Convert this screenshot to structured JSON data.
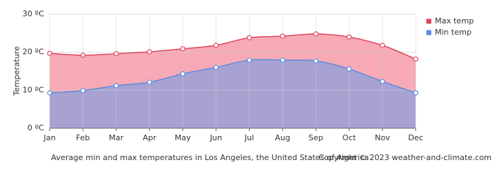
{
  "chart_data": {
    "type": "line",
    "y_label": "Temperature",
    "caption": "Average min and max temperatures in Los Angeles, the United States of America",
    "copyright": "Copyright © 2023  weather-and-climate.com",
    "categories": [
      "Jan",
      "Feb",
      "Mar",
      "Apr",
      "May",
      "Jun",
      "Jul",
      "Aug",
      "Sep",
      "Oct",
      "Nov",
      "Dec"
    ],
    "series": [
      {
        "name": "Max temp",
        "color": "#e0465e",
        "fill": "#f7aab5",
        "values": [
          19.7,
          19.2,
          19.6,
          20.1,
          20.9,
          21.8,
          23.8,
          24.2,
          24.8,
          24.0,
          21.8,
          18.2
        ]
      },
      {
        "name": "Min temp",
        "color": "#5b8be0",
        "fill": "#a8a2d2",
        "values": [
          9.3,
          9.9,
          11.2,
          12.1,
          14.3,
          16.0,
          17.9,
          17.9,
          17.7,
          15.6,
          12.3,
          9.3
        ]
      }
    ],
    "ylim": [
      0,
      30
    ],
    "yticks": [
      {
        "value": 0,
        "label": "0 ºC"
      },
      {
        "value": 10,
        "label": "10 ºC"
      },
      {
        "value": 20,
        "label": "20 ºC"
      },
      {
        "value": 30,
        "label": "30 ºC"
      }
    ],
    "grid": true,
    "legend": "top-right"
  }
}
